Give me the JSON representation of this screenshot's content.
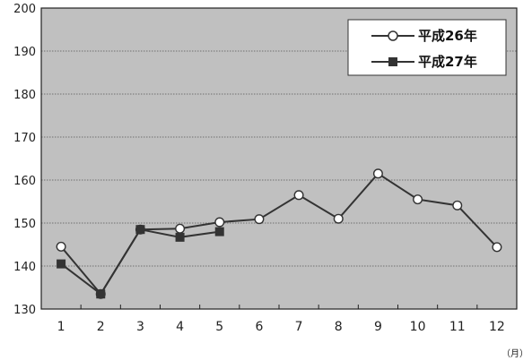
{
  "chart_data": {
    "type": "line",
    "categories": [
      "1",
      "2",
      "3",
      "4",
      "5",
      "6",
      "7",
      "8",
      "9",
      "10",
      "11",
      "12"
    ],
    "x_unit": "（月）",
    "ylim": [
      130,
      200
    ],
    "y_ticks": [
      130,
      140,
      150,
      160,
      170,
      180,
      190,
      200
    ],
    "grid": true,
    "legend_position": "top-right",
    "series": [
      {
        "name": "平成26年",
        "marker": "open-circle",
        "values": [
          144.5,
          133.5,
          148.5,
          148.7,
          150.2,
          150.9,
          156.5,
          151.0,
          161.5,
          155.5,
          154.1,
          144.4
        ]
      },
      {
        "name": "平成27年",
        "marker": "filled-square",
        "values": [
          140.5,
          133.5,
          148.5,
          146.7,
          148.0,
          null,
          null,
          null,
          null,
          null,
          null,
          null
        ]
      }
    ],
    "colors": {
      "plot_background": "#c0c0c0",
      "line": "#333333",
      "axis": "#222222",
      "grid": "#555555"
    }
  }
}
